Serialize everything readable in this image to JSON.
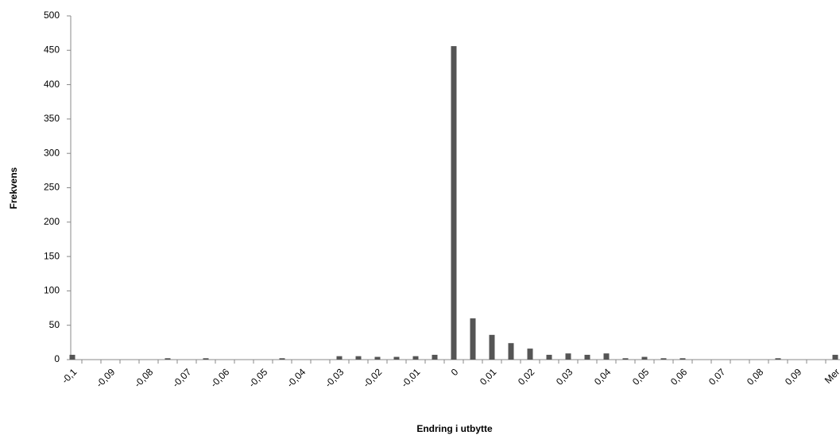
{
  "chart_data": {
    "type": "bar",
    "x_label": "Endring i utbytte",
    "y_label": "Frekvens",
    "categories": [
      "-0,1",
      null,
      "-0,09",
      null,
      "-0,08",
      null,
      "-0,07",
      null,
      "-0,06",
      null,
      "-0,05",
      null,
      "-0,04",
      null,
      "-0,03",
      null,
      "-0,02",
      null,
      "-0,01",
      null,
      "0",
      null,
      "0,01",
      null,
      "0,02",
      null,
      "0,03",
      null,
      "0,04",
      null,
      "0,05",
      null,
      "0,06",
      null,
      "0,07",
      null,
      "0,08",
      null,
      "0,09",
      null,
      "Mer"
    ],
    "values": [
      7,
      0,
      0,
      0,
      0,
      2,
      0,
      2,
      0,
      0,
      0,
      2,
      0,
      0,
      5,
      5,
      4,
      4,
      5,
      7,
      456,
      60,
      36,
      24,
      16,
      7,
      9,
      7,
      9,
      2,
      4,
      2,
      2,
      0,
      0,
      0,
      0,
      2,
      0,
      0,
      7
    ],
    "color": "#555555",
    "ylim": [
      0,
      500
    ],
    "yticks": [
      0,
      50,
      100,
      150,
      200,
      250,
      300,
      350,
      400,
      450,
      500
    ],
    "grid": false
  }
}
